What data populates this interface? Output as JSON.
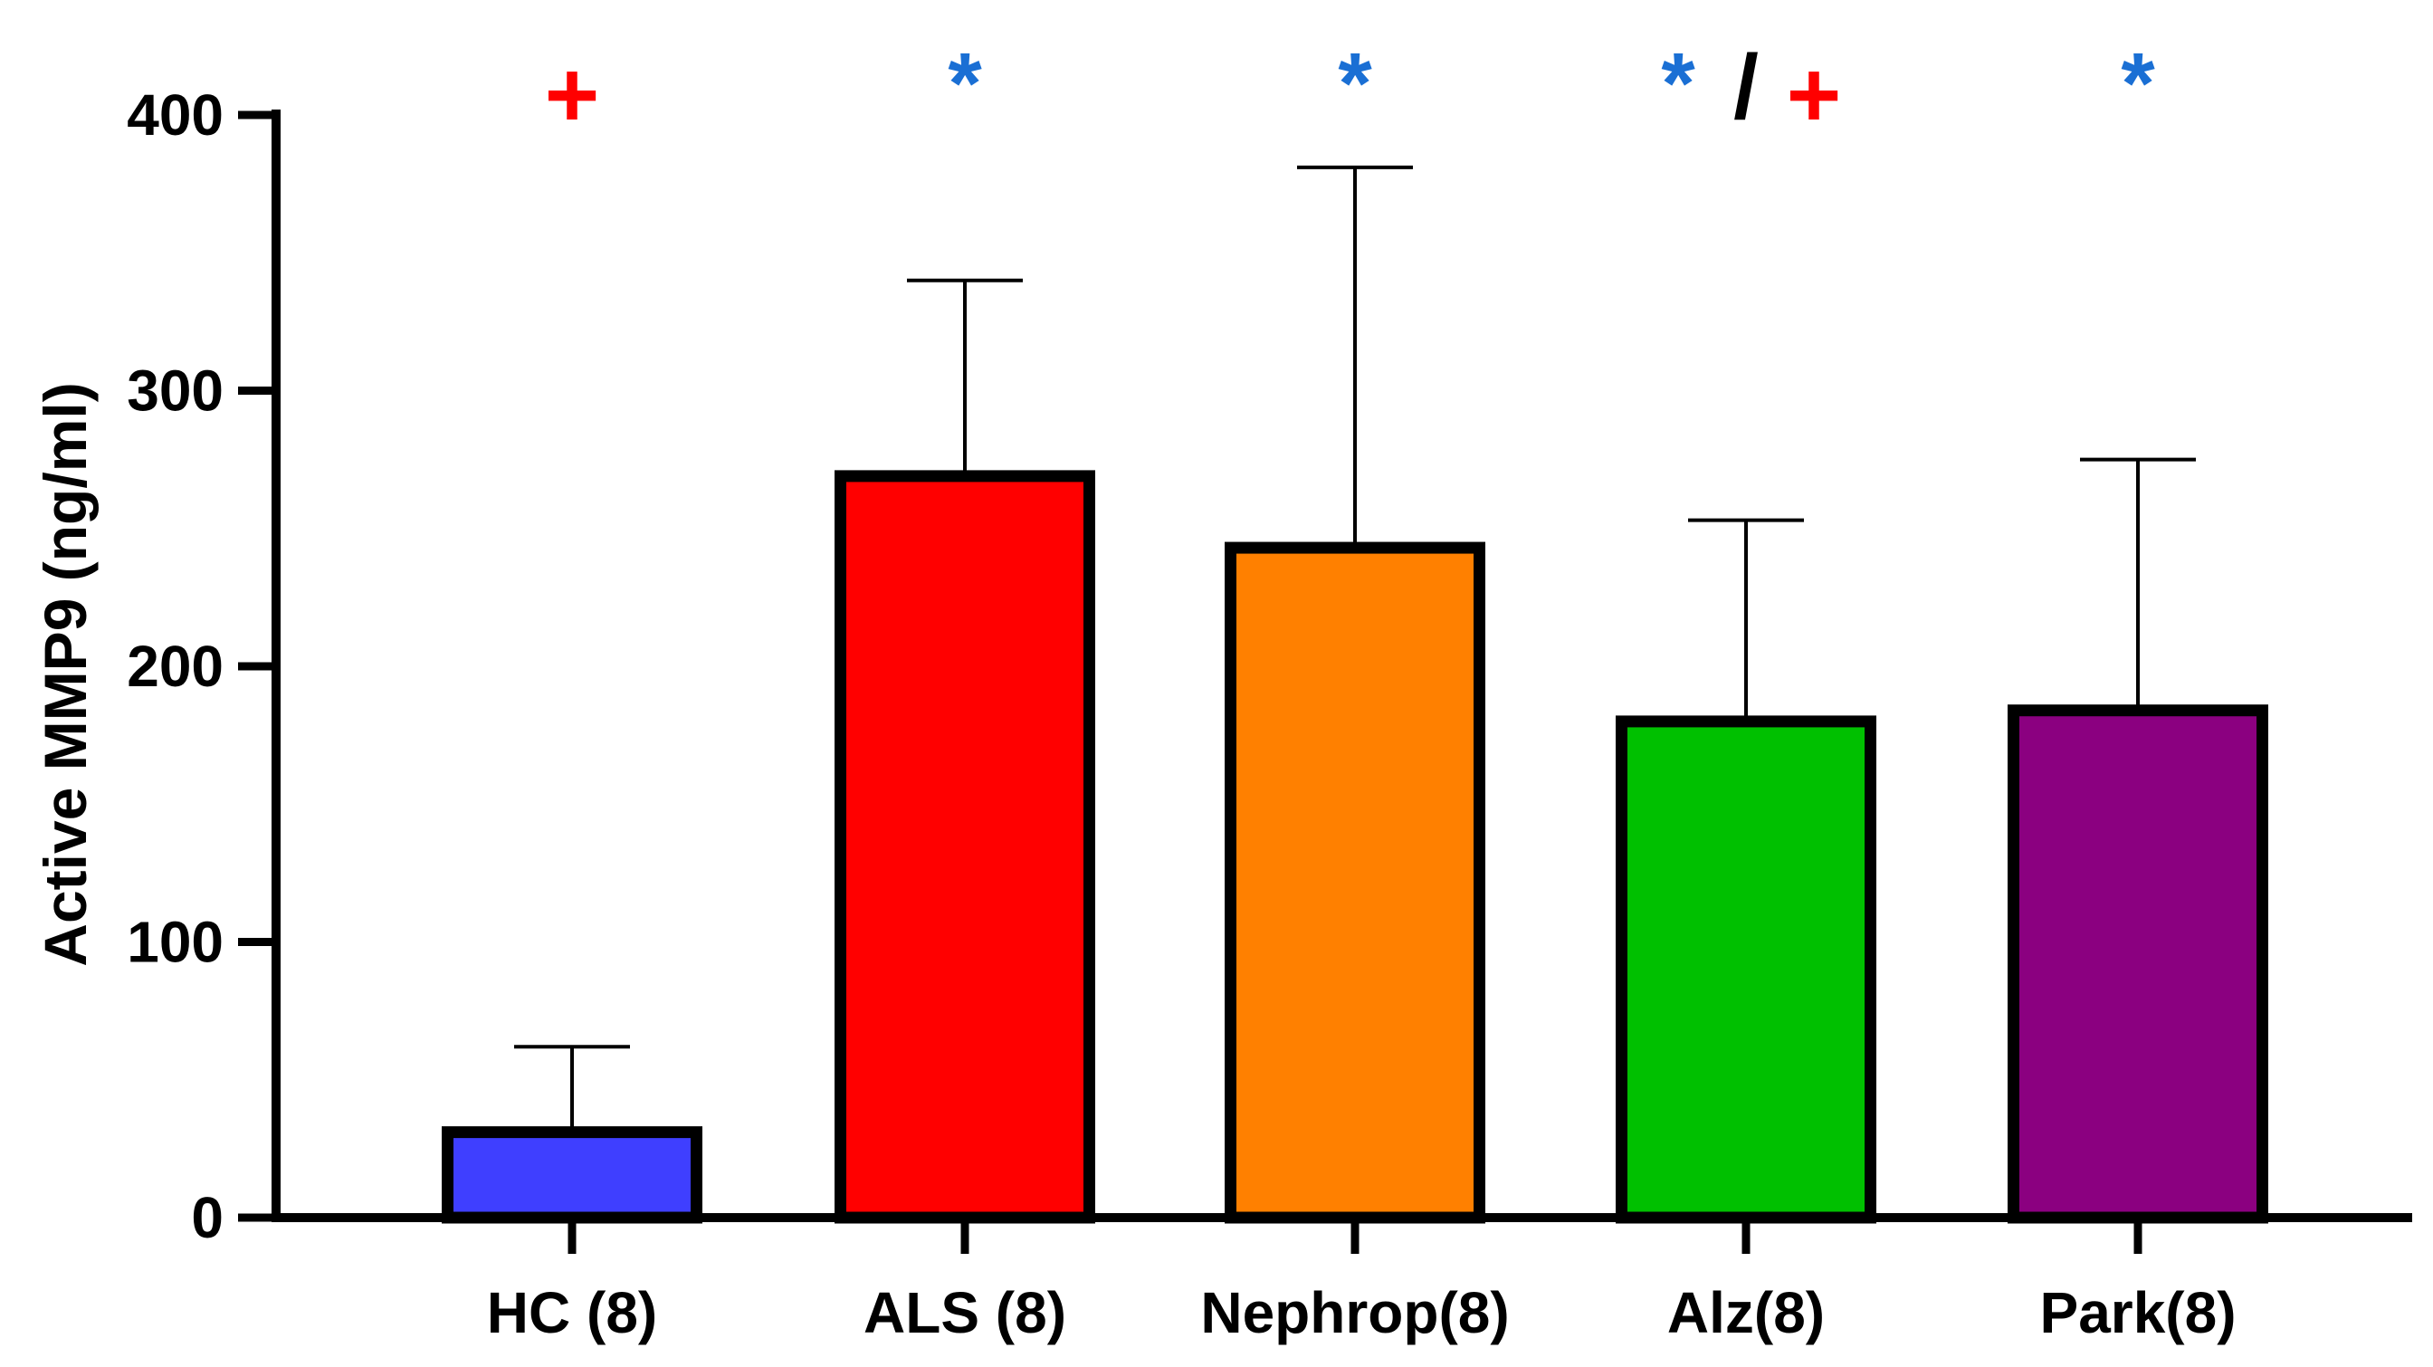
{
  "chart_data": {
    "type": "bar",
    "title": "",
    "xlabel": "",
    "ylabel": "Active MMP9 (ng/ml)",
    "ylim": [
      0,
      400
    ],
    "yticks": [
      0,
      100,
      200,
      300,
      400
    ],
    "categories": [
      "HC (8)",
      "ALS (8)",
      "Nephrop(8)",
      "Alz(8)",
      "Park(8)"
    ],
    "values": [
      31,
      269,
      243,
      180,
      184
    ],
    "error_upper": [
      62,
      340,
      381,
      253,
      275
    ],
    "colors": [
      "#3f3fff",
      "#ff0000",
      "#ff8000",
      "#00c000",
      "#8b0080"
    ],
    "significance": [
      [
        {
          "symbol": "+",
          "color": "#ff0000"
        }
      ],
      [
        {
          "symbol": "*",
          "color": "#1a6fd4"
        }
      ],
      [
        {
          "symbol": "*",
          "color": "#1a6fd4"
        }
      ],
      [
        {
          "symbol": "*",
          "color": "#1a6fd4"
        },
        {
          "symbol": "/",
          "color": "#000000"
        },
        {
          "symbol": "+",
          "color": "#ff0000"
        }
      ],
      [
        {
          "symbol": "*",
          "color": "#1a6fd4"
        }
      ]
    ]
  }
}
